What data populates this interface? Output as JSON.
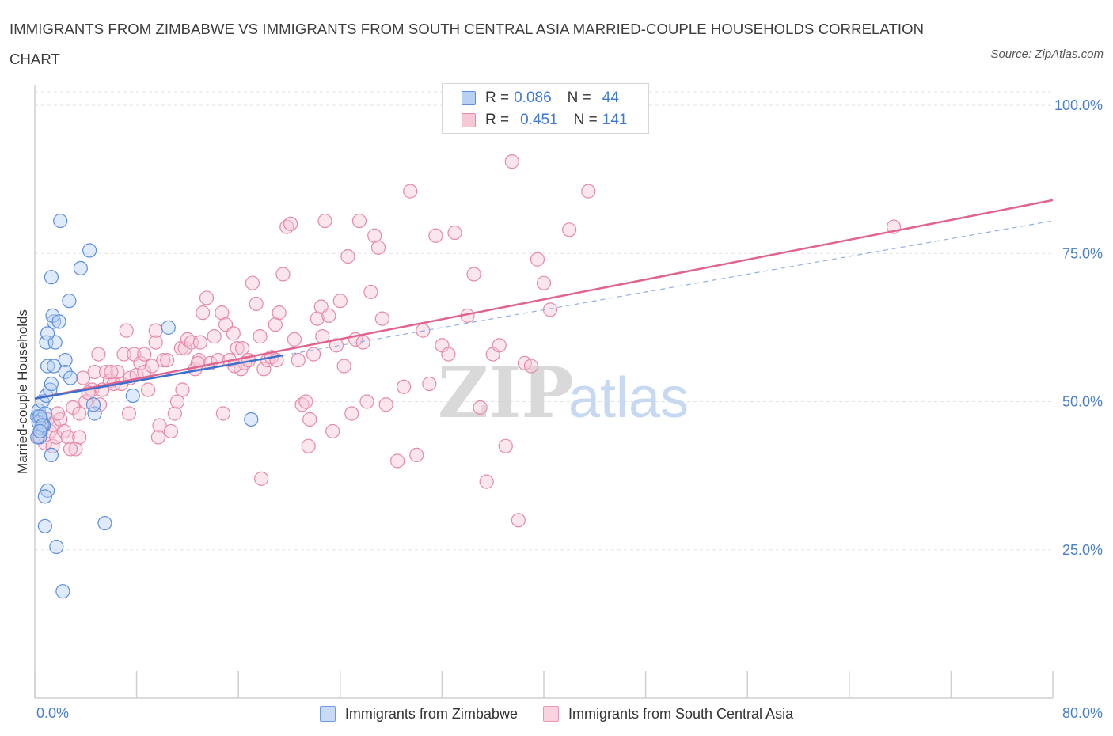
{
  "header": {
    "title": "IMMIGRANTS FROM ZIMBABWE VS IMMIGRANTS FROM SOUTH CENTRAL ASIA MARRIED-COUPLE HOUSEHOLDS CORRELATION CHART",
    "source": "Source: ZipAtlas.com"
  },
  "watermark": {
    "zip": "ZIP",
    "atlas": "atlas"
  },
  "legend_top": {
    "rows": [
      {
        "r_key": "R =",
        "r_value": "0.086",
        "n_key": "N =",
        "n_value": "44"
      },
      {
        "r_key": "R =",
        "r_value": "0.451",
        "n_key": "N =",
        "n_value": "141"
      }
    ]
  },
  "colors": {
    "zimbabwe_fill": "#b8d0f3",
    "zimbabwe_stroke": "#5e8fdc",
    "zimbabwe_line": "#3b6fd0",
    "sca_fill": "#f8c7d6",
    "sca_stroke": "#e48aa8",
    "sca_line": "#e0648f",
    "tick_text": "#4a7fcf"
  },
  "chart_data": {
    "type": "scatter",
    "title": "IMMIGRANTS FROM ZIMBABWE VS IMMIGRANTS FROM SOUTH CENTRAL ASIA MARRIED-COUPLE HOUSEHOLDS CORRELATION CHART",
    "xlabel": "",
    "ylabel": "Married-couple Households",
    "xlim": [
      0,
      80
    ],
    "ylim": [
      0,
      100
    ],
    "x_tick_labels": [
      "0.0%",
      "80.0%"
    ],
    "y_ticks": [
      25,
      50,
      75,
      100
    ],
    "y_tick_labels": [
      "25.0%",
      "50.0%",
      "75.0%",
      "100.0%"
    ],
    "grid": true,
    "legend_position": "bottom",
    "series": [
      {
        "name": "Immigrants from Zimbabwe",
        "R": 0.086,
        "N": 44,
        "trend": {
          "x": [
            0,
            19.5
          ],
          "y": [
            50.5,
            57.8
          ]
        },
        "trend_dashed": {
          "x": [
            19.5,
            80
          ],
          "y": [
            57.8,
            80.5
          ]
        },
        "points": [
          [
            0.2,
            47.5
          ],
          [
            0.3,
            48.5
          ],
          [
            0.4,
            44
          ],
          [
            0.5,
            47
          ],
          [
            0.6,
            50
          ],
          [
            0.7,
            46
          ],
          [
            0.3,
            46.5
          ],
          [
            0.5,
            45.5
          ],
          [
            0.8,
            48
          ],
          [
            0.9,
            51
          ],
          [
            1.2,
            52
          ],
          [
            1.3,
            53
          ],
          [
            1.0,
            56
          ],
          [
            1.5,
            56
          ],
          [
            0.9,
            60
          ],
          [
            1.6,
            60
          ],
          [
            1.0,
            61.5
          ],
          [
            1.5,
            63.5
          ],
          [
            1.4,
            64.5
          ],
          [
            1.9,
            63.5
          ],
          [
            2.4,
            57
          ],
          [
            2.4,
            55
          ],
          [
            2.8,
            54
          ],
          [
            2.7,
            67
          ],
          [
            4.3,
            75.5
          ],
          [
            3.6,
            72.5
          ],
          [
            1.3,
            71
          ],
          [
            2.0,
            80.5
          ],
          [
            1.0,
            35
          ],
          [
            0.8,
            34
          ],
          [
            0.8,
            29
          ],
          [
            1.7,
            25.5
          ],
          [
            2.2,
            18
          ],
          [
            5.5,
            29.5
          ],
          [
            1.3,
            41
          ],
          [
            4.7,
            48
          ],
          [
            4.6,
            49.5
          ],
          [
            7.7,
            51
          ],
          [
            10.5,
            62.5
          ],
          [
            17.0,
            47
          ],
          [
            0.4,
            47.5
          ],
          [
            0.6,
            46
          ],
          [
            0.2,
            44
          ],
          [
            0.4,
            45
          ]
        ]
      },
      {
        "name": "Immigrants from South Central Asia",
        "R": 0.451,
        "N": 141,
        "trend": {
          "x": [
            0,
            80
          ],
          "y": [
            50.5,
            84
          ]
        },
        "points": [
          [
            0.3,
            44
          ],
          [
            0.5,
            45
          ],
          [
            0.6,
            46.5
          ],
          [
            0.8,
            43
          ],
          [
            1.0,
            47
          ],
          [
            1.2,
            45
          ],
          [
            1.4,
            42.5
          ],
          [
            1.5,
            46
          ],
          [
            1.7,
            44
          ],
          [
            2.0,
            47
          ],
          [
            2.3,
            45
          ],
          [
            2.6,
            44
          ],
          [
            3.0,
            49
          ],
          [
            3.2,
            42
          ],
          [
            3.5,
            48
          ],
          [
            3.8,
            54
          ],
          [
            4.0,
            50
          ],
          [
            4.5,
            52
          ],
          [
            4.7,
            55
          ],
          [
            5.0,
            58
          ],
          [
            5.3,
            52
          ],
          [
            5.6,
            55
          ],
          [
            5.9,
            53.5
          ],
          [
            6.2,
            53
          ],
          [
            6.5,
            55
          ],
          [
            6.8,
            53
          ],
          [
            7.0,
            58
          ],
          [
            7.2,
            62
          ],
          [
            7.5,
            54
          ],
          [
            7.8,
            58
          ],
          [
            8.0,
            54.5
          ],
          [
            8.3,
            56.5
          ],
          [
            8.6,
            55
          ],
          [
            8.9,
            52
          ],
          [
            9.2,
            56
          ],
          [
            9.5,
            60
          ],
          [
            9.8,
            46
          ],
          [
            10.1,
            57
          ],
          [
            10.4,
            57
          ],
          [
            10.7,
            45
          ],
          [
            11.0,
            48
          ],
          [
            11.2,
            50
          ],
          [
            11.5,
            59
          ],
          [
            11.8,
            59
          ],
          [
            12.0,
            60.5
          ],
          [
            12.3,
            60
          ],
          [
            12.6,
            55.5
          ],
          [
            12.9,
            57
          ],
          [
            13.2,
            65
          ],
          [
            13.5,
            67.5
          ],
          [
            13.8,
            56.5
          ],
          [
            14.1,
            61
          ],
          [
            14.4,
            57
          ],
          [
            14.7,
            65
          ],
          [
            15.0,
            63
          ],
          [
            15.3,
            57
          ],
          [
            15.6,
            61.5
          ],
          [
            15.9,
            59
          ],
          [
            16.2,
            55.5
          ],
          [
            16.5,
            56.5
          ],
          [
            16.8,
            57
          ],
          [
            17.1,
            70
          ],
          [
            17.4,
            66.5
          ],
          [
            17.7,
            61
          ],
          [
            18.0,
            55.5
          ],
          [
            18.3,
            57
          ],
          [
            18.6,
            57.5
          ],
          [
            18.9,
            63
          ],
          [
            19.2,
            65
          ],
          [
            19.5,
            71.5
          ],
          [
            19.8,
            79.5
          ],
          [
            20.1,
            80
          ],
          [
            20.4,
            60.5
          ],
          [
            20.7,
            57
          ],
          [
            21.0,
            49.5
          ],
          [
            21.3,
            50
          ],
          [
            21.6,
            47
          ],
          [
            21.9,
            58
          ],
          [
            22.2,
            64
          ],
          [
            22.5,
            66
          ],
          [
            22.8,
            80.5
          ],
          [
            23.1,
            64.5
          ],
          [
            23.4,
            45
          ],
          [
            23.7,
            59.5
          ],
          [
            24.0,
            67
          ],
          [
            24.3,
            56
          ],
          [
            24.6,
            74.5
          ],
          [
            24.9,
            48
          ],
          [
            25.2,
            60.5
          ],
          [
            25.5,
            80.5
          ],
          [
            25.8,
            60
          ],
          [
            26.1,
            50
          ],
          [
            26.4,
            68.5
          ],
          [
            26.7,
            78
          ],
          [
            27.0,
            76
          ],
          [
            27.3,
            64
          ],
          [
            27.6,
            49.5
          ],
          [
            28.5,
            40
          ],
          [
            29.0,
            52.5
          ],
          [
            29.5,
            85.5
          ],
          [
            30.0,
            41
          ],
          [
            30.5,
            62
          ],
          [
            31.0,
            53
          ],
          [
            31.5,
            78
          ],
          [
            32.0,
            59.5
          ],
          [
            32.5,
            58
          ],
          [
            33.0,
            78.5
          ],
          [
            34.0,
            64.5
          ],
          [
            34.5,
            71.5
          ],
          [
            35.0,
            49
          ],
          [
            35.5,
            36.5
          ],
          [
            36.0,
            58
          ],
          [
            36.5,
            59.5
          ],
          [
            37.0,
            42.5
          ],
          [
            37.5,
            90.5
          ],
          [
            38.0,
            30
          ],
          [
            38.5,
            56.5
          ],
          [
            39.0,
            56
          ],
          [
            39.5,
            74
          ],
          [
            40.0,
            70
          ],
          [
            40.5,
            65.5
          ],
          [
            42.0,
            79
          ],
          [
            43.5,
            85.5
          ],
          [
            67.5,
            79.5
          ],
          [
            9.5,
            62
          ],
          [
            13.0,
            60
          ],
          [
            6.0,
            55
          ],
          [
            4.2,
            51.5
          ],
          [
            5.1,
            49.5
          ],
          [
            1.8,
            48
          ],
          [
            2.8,
            42
          ],
          [
            3.5,
            44
          ],
          [
            12.8,
            56.5
          ],
          [
            14.8,
            48
          ],
          [
            17.8,
            37
          ],
          [
            21.5,
            42.5
          ],
          [
            7.4,
            48
          ],
          [
            8.6,
            58
          ],
          [
            11.6,
            52
          ],
          [
            15.7,
            56
          ],
          [
            19.0,
            57
          ],
          [
            22.6,
            61
          ],
          [
            16.3,
            59
          ],
          [
            9.7,
            44
          ]
        ]
      }
    ]
  },
  "bottom_legend": {
    "items": [
      "Immigrants from Zimbabwe",
      "Immigrants from South Central Asia"
    ]
  }
}
